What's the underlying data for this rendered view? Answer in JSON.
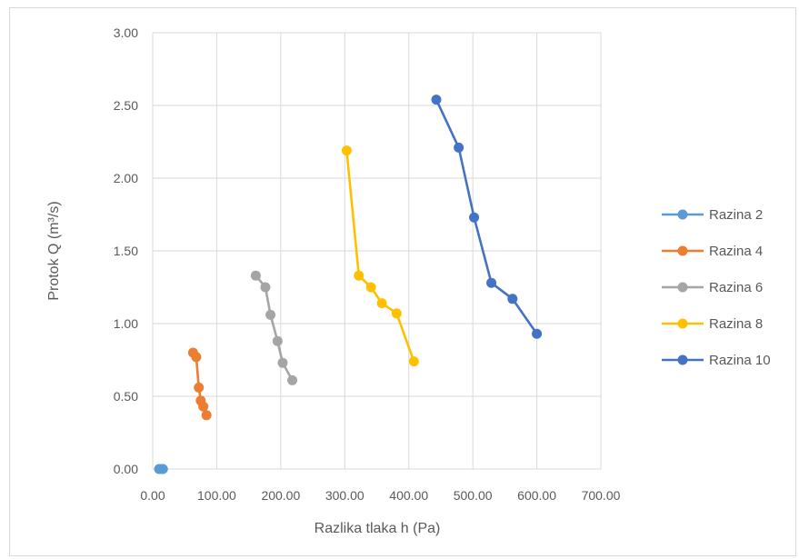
{
  "chart_data": {
    "type": "scatter",
    "xlabel": "Razlika tlaka  h (Pa)",
    "ylabel": "Protok Q (m³/s)",
    "xlim": [
      0,
      700
    ],
    "ylim": [
      0,
      3
    ],
    "x_ticks": [
      "0.00",
      "100.00",
      "200.00",
      "300.00",
      "400.00",
      "500.00",
      "600.00",
      "700.00"
    ],
    "y_ticks": [
      "0.00",
      "0.50",
      "1.00",
      "1.50",
      "2.00",
      "2.50",
      "3.00"
    ],
    "grid": true,
    "legend_position": "right",
    "series": [
      {
        "name": "Razina 2",
        "color": "#5B9BD5",
        "points": [
          [
            10,
            0
          ],
          [
            13,
            0
          ],
          [
            16,
            0
          ]
        ]
      },
      {
        "name": "Razina 4",
        "color": "#ED7D31",
        "points": [
          [
            63,
            0.8
          ],
          [
            68,
            0.77
          ],
          [
            72,
            0.56
          ],
          [
            75,
            0.47
          ],
          [
            79,
            0.43
          ],
          [
            84,
            0.37
          ]
        ]
      },
      {
        "name": "Razina 6",
        "color": "#A5A5A5",
        "points": [
          [
            161,
            1.33
          ],
          [
            176,
            1.25
          ],
          [
            184,
            1.06
          ],
          [
            195,
            0.88
          ],
          [
            203,
            0.73
          ],
          [
            218,
            0.61
          ]
        ]
      },
      {
        "name": "Razina 8",
        "color": "#FFC000",
        "points": [
          [
            303,
            2.19
          ],
          [
            322,
            1.33
          ],
          [
            341,
            1.25
          ],
          [
            358,
            1.14
          ],
          [
            381,
            1.07
          ],
          [
            408,
            0.74
          ]
        ]
      },
      {
        "name": "Razina 10",
        "color": "#4472C4",
        "points": [
          [
            443,
            2.54
          ],
          [
            478,
            2.21
          ],
          [
            502,
            1.73
          ],
          [
            529,
            1.28
          ],
          [
            562,
            1.17
          ],
          [
            600,
            0.93
          ]
        ]
      }
    ]
  }
}
